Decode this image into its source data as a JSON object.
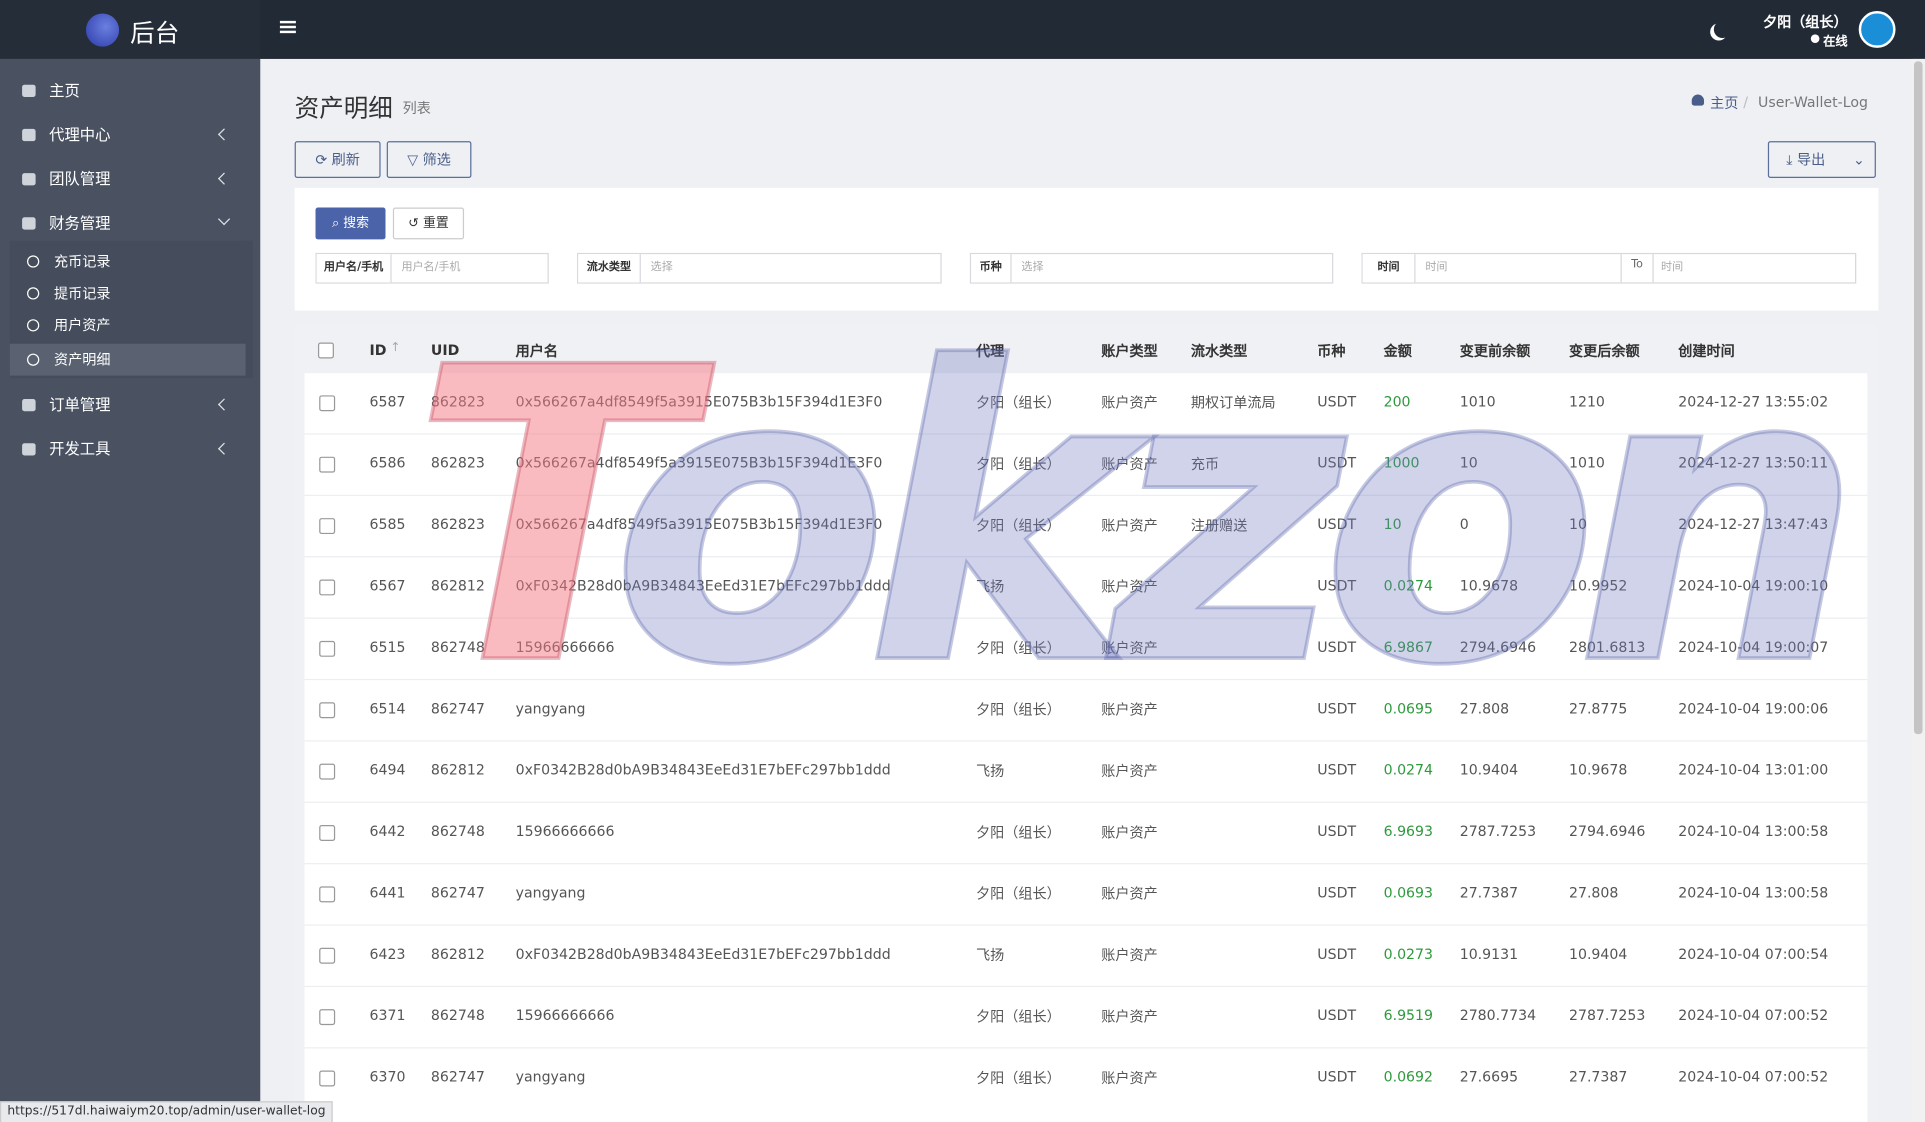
{
  "brand": "后台",
  "nav": [
    {
      "label": "主页"
    },
    {
      "label": "代理中心"
    },
    {
      "label": "团队管理"
    },
    {
      "label": "财务管理",
      "children": [
        "充币记录",
        "提币记录",
        "用户资产",
        "资产明细"
      ]
    },
    {
      "label": "订单管理"
    },
    {
      "label": "开发工具"
    }
  ],
  "user": {
    "name": "夕阳（组长）",
    "status": "在线"
  },
  "page": {
    "title": "资产明细",
    "subtitle": "列表"
  },
  "breadcrumb": [
    "主页",
    "User-Wallet-Log"
  ],
  "toolbar": {
    "refresh": "刷新",
    "filter": "筛选",
    "export": "导出"
  },
  "search": {
    "submit": "搜索",
    "reset": "重置"
  },
  "filters": [
    {
      "label": "用户名/手机",
      "placeholder": "用户名/手机"
    },
    {
      "label": "流水类型",
      "placeholder": "选择"
    },
    {
      "label": "币种",
      "placeholder": "选择"
    },
    {
      "label": "时间",
      "placeholder": "时间",
      "to": "To",
      "placeholder_end": "时间"
    }
  ],
  "table": {
    "columns": [
      "ID",
      "UID",
      "用户名",
      "代理",
      "账户类型",
      "流水类型",
      "币种",
      "金额",
      "变更前余额",
      "变更后余额",
      "创建时间"
    ],
    "rows": [
      [
        "6587",
        "862823",
        "0x566267a4df8549f5a3915E075B3b15F394d1E3F0",
        "夕阳（组长）",
        "账户资产",
        "期权订单流局",
        "USDT",
        "200",
        "1010",
        "1210",
        "2024-12-27 13:55:02"
      ],
      [
        "6586",
        "862823",
        "0x566267a4df8549f5a3915E075B3b15F394d1E3F0",
        "夕阳（组长）",
        "账户资产",
        "充币",
        "USDT",
        "1000",
        "10",
        "1010",
        "2024-12-27 13:50:11"
      ],
      [
        "6585",
        "862823",
        "0x566267a4df8549f5a3915E075B3b15F394d1E3F0",
        "夕阳（组长）",
        "账户资产",
        "注册赠送",
        "USDT",
        "10",
        "0",
        "10",
        "2024-12-27 13:47:43"
      ],
      [
        "6567",
        "862812",
        "0xF0342B28d0bA9B34843EeEd31E7bEFc297bb1ddd",
        "飞扬",
        "账户资产",
        null,
        "USDT",
        "0.0274",
        "10.9678",
        "10.9952",
        "2024-10-04 19:00:10"
      ],
      [
        "6515",
        "862748",
        "15966666666",
        "夕阳（组长）",
        "账户资产",
        null,
        "USDT",
        "6.9867",
        "2794.6946",
        "2801.6813",
        "2024-10-04 19:00:07"
      ],
      [
        "6514",
        "862747",
        "yangyang",
        "夕阳（组长）",
        "账户资产",
        null,
        "USDT",
        "0.0695",
        "27.808",
        "27.8775",
        "2024-10-04 19:00:06"
      ],
      [
        "6494",
        "862812",
        "0xF0342B28d0bA9B34843EeEd31E7bEFc297bb1ddd",
        "飞扬",
        "账户资产",
        null,
        "USDT",
        "0.0274",
        "10.9404",
        "10.9678",
        "2024-10-04 13:01:00"
      ],
      [
        "6442",
        "862748",
        "15966666666",
        "夕阳（组长）",
        "账户资产",
        null,
        "USDT",
        "6.9693",
        "2787.7253",
        "2794.6946",
        "2024-10-04 13:00:58"
      ],
      [
        "6441",
        "862747",
        "yangyang",
        "夕阳（组长）",
        "账户资产",
        null,
        "USDT",
        "0.0693",
        "27.7387",
        "27.808",
        "2024-10-04 13:00:58"
      ],
      [
        "6423",
        "862812",
        "0xF0342B28d0bA9B34843EeEd31E7bEFc297bb1ddd",
        "飞扬",
        "账户资产",
        null,
        "USDT",
        "0.0273",
        "10.9131",
        "10.9404",
        "2024-10-04 07:00:54"
      ],
      [
        "6371",
        "862748",
        "15966666666",
        "夕阳（组长）",
        "账户资产",
        null,
        "USDT",
        "6.9519",
        "2780.7734",
        "2787.7253",
        "2024-10-04 07:00:52"
      ],
      [
        "6370",
        "862747",
        "yangyang",
        "夕阳（组长）",
        "账户资产",
        null,
        "USDT",
        "0.0692",
        "27.6695",
        "27.7387",
        "2024-10-04 07:00:52"
      ]
    ]
  },
  "watermark": "Tokzon",
  "status_url": "https://517dl.haiwaiym20.top/admin/user-wallet-log"
}
